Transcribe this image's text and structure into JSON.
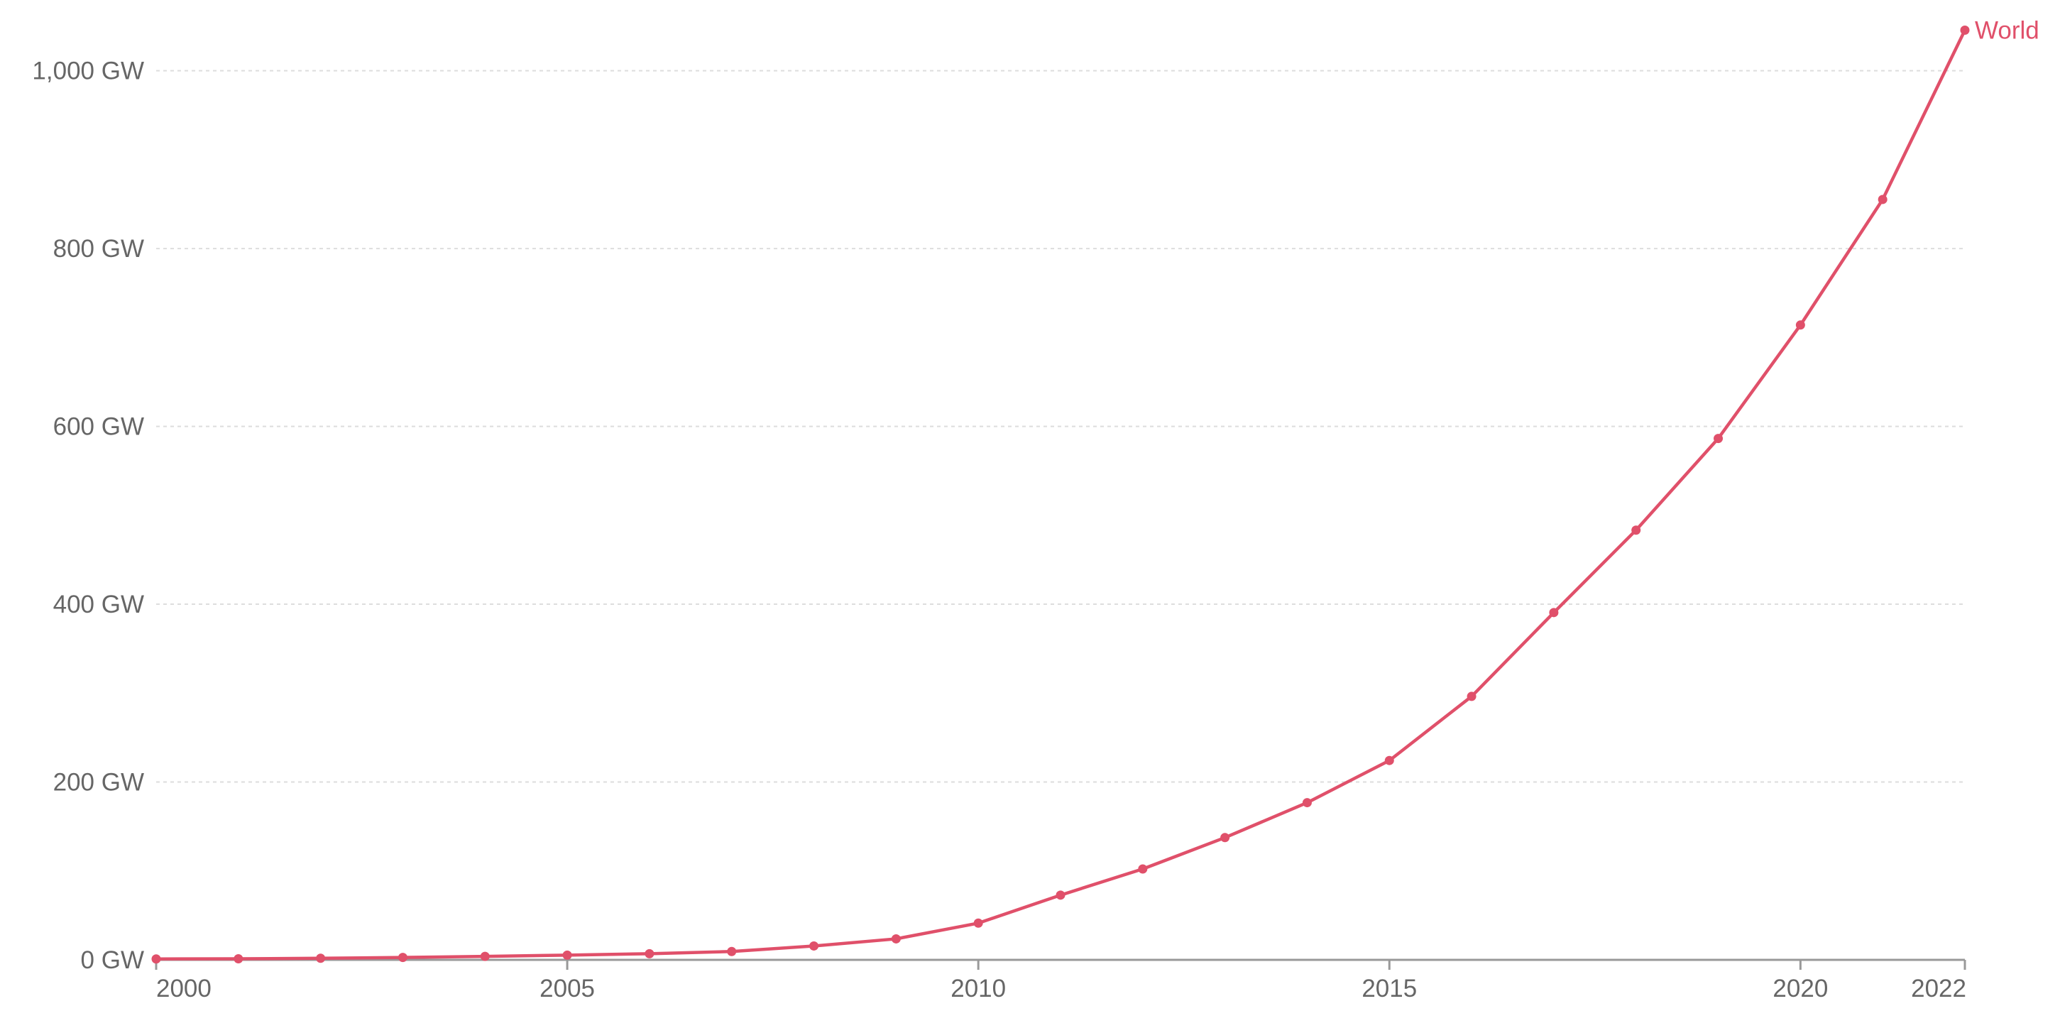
{
  "chart_data": {
    "type": "line",
    "title": "",
    "subtitle": "",
    "xlabel": "",
    "ylabel": "",
    "xlim": [
      2000,
      2022
    ],
    "ylim": [
      0,
      1050
    ],
    "grid": "horizontal-dashed",
    "x_ticks": [
      2000,
      2005,
      2010,
      2015,
      2020,
      2022
    ],
    "x_tick_labels": [
      "2000",
      "2005",
      "2010",
      "2015",
      "2020",
      "2022"
    ],
    "y_ticks": [
      0,
      200,
      400,
      600,
      800,
      1000
    ],
    "y_tick_labels": [
      "0 GW",
      "200 GW",
      "400 GW",
      "600 GW",
      "800 GW",
      "1,000 GW"
    ],
    "series": [
      {
        "name": "World",
        "color": "#e0506a",
        "x": [
          2000,
          2001,
          2002,
          2003,
          2004,
          2005,
          2006,
          2007,
          2008,
          2009,
          2010,
          2011,
          2012,
          2013,
          2014,
          2015,
          2016,
          2017,
          2018,
          2019,
          2020,
          2021,
          2022
        ],
        "values": [
          1,
          1.2,
          1.8,
          2.7,
          3.9,
          5.3,
          6.9,
          9.4,
          15.6,
          23.6,
          41.3,
          72.8,
          102.2,
          137.5,
          176.8,
          224.2,
          296.3,
          390.6,
          483.3,
          586.4,
          714,
          855.2,
          1045.6
        ]
      }
    ]
  }
}
